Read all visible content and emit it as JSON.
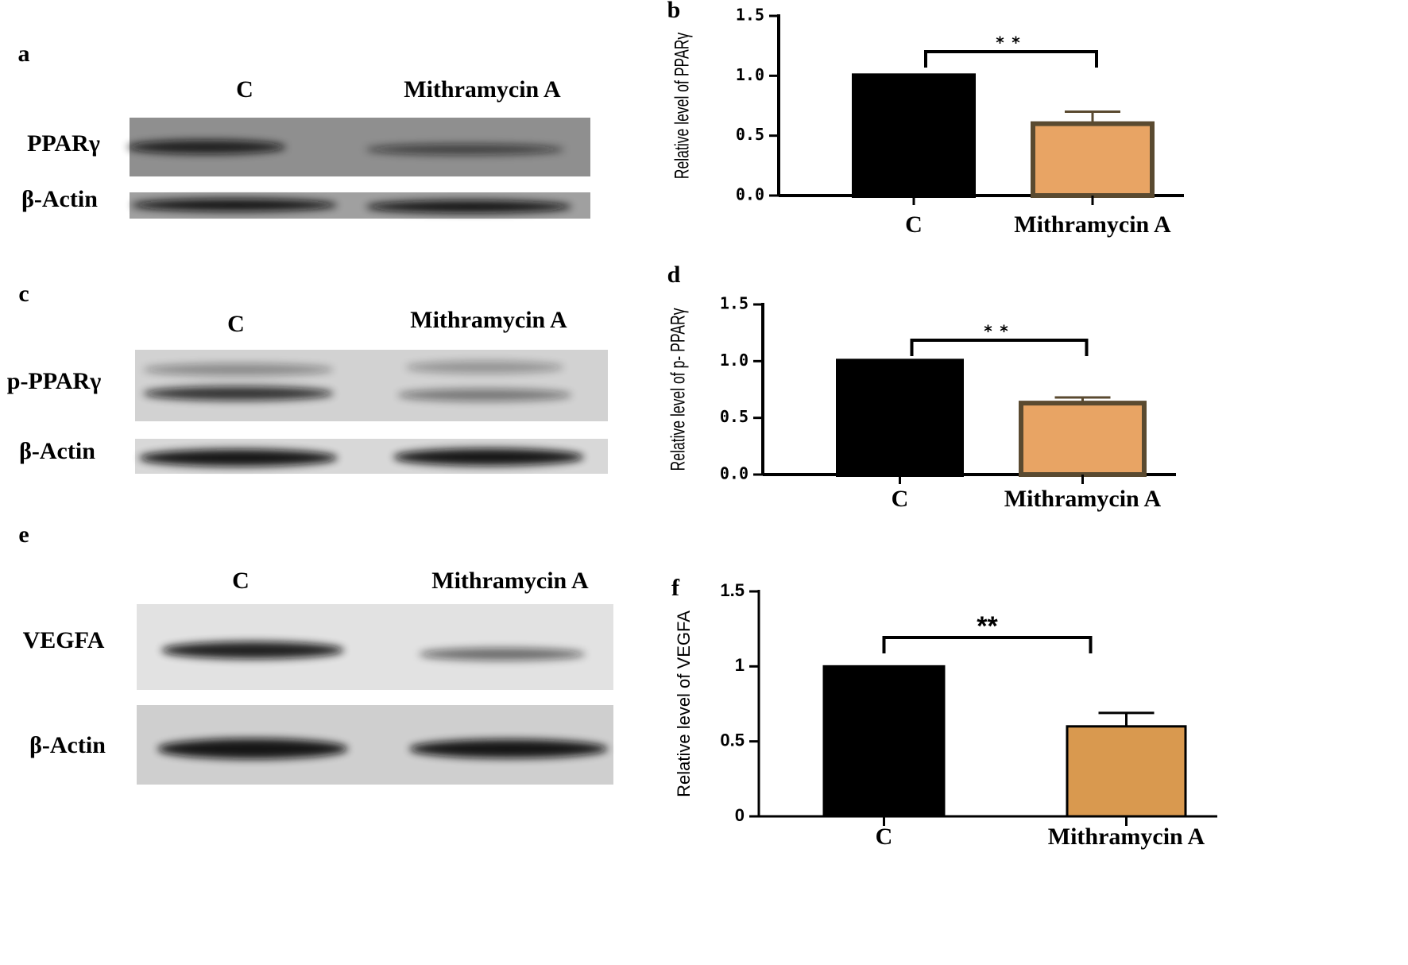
{
  "blots": [
    {
      "panel": "a",
      "columns": [
        "C",
        "Mithramycin A"
      ],
      "rows": [
        "PPARγ",
        "β-Actin"
      ]
    },
    {
      "panel": "c",
      "columns": [
        "C",
        "Mithramycin A"
      ],
      "rows": [
        "p-PPARγ",
        "β-Actin"
      ]
    },
    {
      "panel": "e",
      "columns": [
        "C",
        "Mithramycin A"
      ],
      "rows": [
        "VEGFA",
        "β-Actin"
      ]
    }
  ],
  "chart_data": [
    {
      "type": "bar",
      "panel": "b",
      "y_label": "Relative level of PPARγ",
      "categories": [
        "C",
        "Mithramycin A"
      ],
      "values": [
        1.0,
        0.6
      ],
      "errors": [
        null,
        0.1
      ],
      "colors": [
        "#000000",
        "#e8a464"
      ],
      "edgecolor": "#5a4a30",
      "annotation": "**",
      "ylim": [
        0,
        1.5
      ],
      "yticks": [
        {
          "value": 0,
          "label": "0.0"
        },
        {
          "value": 0.5,
          "label": "0.5"
        },
        {
          "value": 1,
          "label": "1.0"
        },
        {
          "value": 1.5,
          "label": "1.5"
        }
      ]
    },
    {
      "type": "bar",
      "panel": "d",
      "y_label": "Relative level of p- PPARγ",
      "categories": [
        "C",
        "Mithramycin A"
      ],
      "values": [
        1.0,
        0.63
      ],
      "errors": [
        null,
        0.05
      ],
      "colors": [
        "#000000",
        "#e8a464"
      ],
      "edgecolor": "#5a4a30",
      "annotation": "**",
      "ylim": [
        0,
        1.5
      ],
      "yticks": [
        {
          "value": 0,
          "label": "0.0"
        },
        {
          "value": 0.5,
          "label": "0.5"
        },
        {
          "value": 1,
          "label": "1.0"
        },
        {
          "value": 1.5,
          "label": "1.5"
        }
      ]
    },
    {
      "type": "bar",
      "panel": "f",
      "y_label": "Relative level of VEGFA",
      "categories": [
        "C",
        "Mithramycin A"
      ],
      "values": [
        1.0,
        0.6
      ],
      "errors": [
        null,
        0.09
      ],
      "colors": [
        "#000000",
        "#d9994f"
      ],
      "edgecolor": "#000000",
      "annotation": "**",
      "ylim": [
        0,
        1.5
      ],
      "yticks": [
        0,
        0.5,
        1,
        1.5
      ]
    }
  ]
}
